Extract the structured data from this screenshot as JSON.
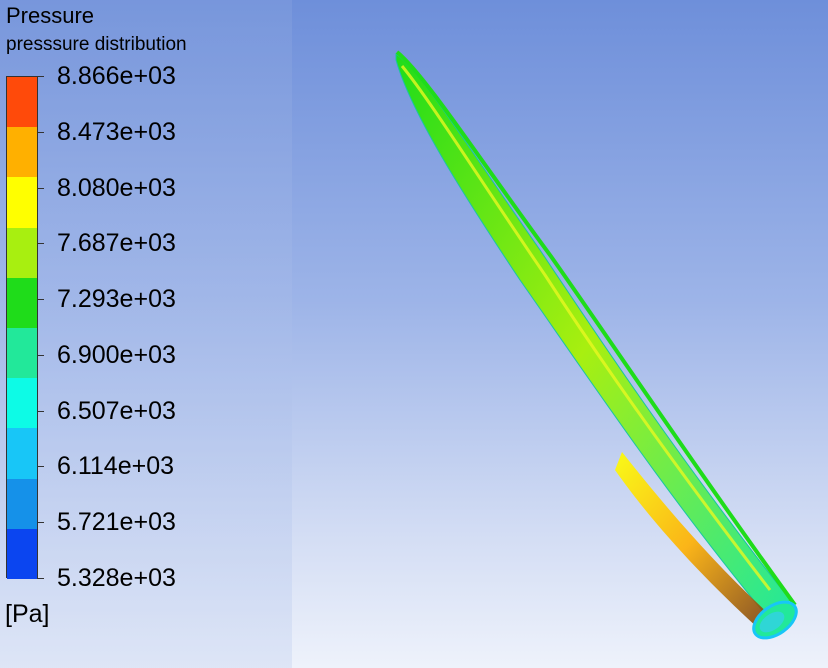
{
  "legend": {
    "title": "Pressure",
    "subtitle": "presssure distribution",
    "unit": "[Pa]",
    "ticks": [
      "8.866e+03",
      "8.473e+03",
      "8.080e+03",
      "7.687e+03",
      "7.293e+03",
      "6.900e+03",
      "6.507e+03",
      "6.114e+03",
      "5.721e+03",
      "5.328e+03"
    ],
    "colors": [
      "#ff4a0a",
      "#ffb000",
      "#ffff00",
      "#a8ef10",
      "#1fdc1a",
      "#22e89a",
      "#0dfbe6",
      "#18c6f7",
      "#1591e9",
      "#0b45f0"
    ]
  },
  "blade": {
    "description_colors": {
      "edge": "#1fdc1a",
      "surface": "#b8f018",
      "hub": "#2fd6d6",
      "pressure_zone": "#ffb000",
      "dark_zone": "#8a4a10"
    }
  }
}
